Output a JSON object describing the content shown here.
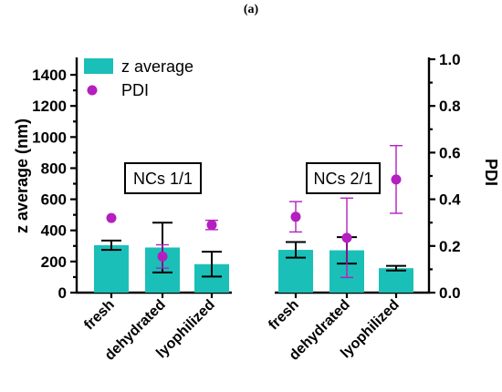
{
  "panel_label": "(a)",
  "chart_data": {
    "type": "bar",
    "categories": [
      "fresh",
      "dehydrated",
      "lyophilized",
      "fresh",
      "dehydrated",
      "lyophilized"
    ],
    "groups": [
      {
        "label": "NCs 1/1",
        "indices": [
          0,
          1,
          2
        ]
      },
      {
        "label": "NCs 2/1",
        "indices": [
          3,
          4,
          5
        ]
      }
    ],
    "series": [
      {
        "name": "z average",
        "kind": "bar",
        "axis": "left",
        "color": "#1ABFB8",
        "values": [
          305,
          290,
          183,
          275,
          272,
          157
        ],
        "error": [
          30,
          160,
          80,
          50,
          85,
          15
        ]
      },
      {
        "name": "PDI",
        "kind": "point",
        "axis": "right",
        "color": "#B41FBF",
        "values": [
          0.32,
          0.155,
          0.29,
          0.325,
          0.235,
          0.485
        ],
        "error": [
          0,
          0.05,
          0.02,
          0.065,
          0.17,
          0.145
        ]
      }
    ],
    "ylabel": "z average (nm)",
    "ylim": [
      0,
      1500
    ],
    "yticks": [
      0,
      200,
      400,
      600,
      800,
      1000,
      1200,
      1400
    ],
    "y2label": "PDI",
    "y2lim": [
      0,
      1.0
    ],
    "y2ticks": [
      "0.0",
      "0.2",
      "0.4",
      "0.6",
      "0.8",
      "1.0"
    ],
    "legend": "top-left",
    "grid": false
  }
}
